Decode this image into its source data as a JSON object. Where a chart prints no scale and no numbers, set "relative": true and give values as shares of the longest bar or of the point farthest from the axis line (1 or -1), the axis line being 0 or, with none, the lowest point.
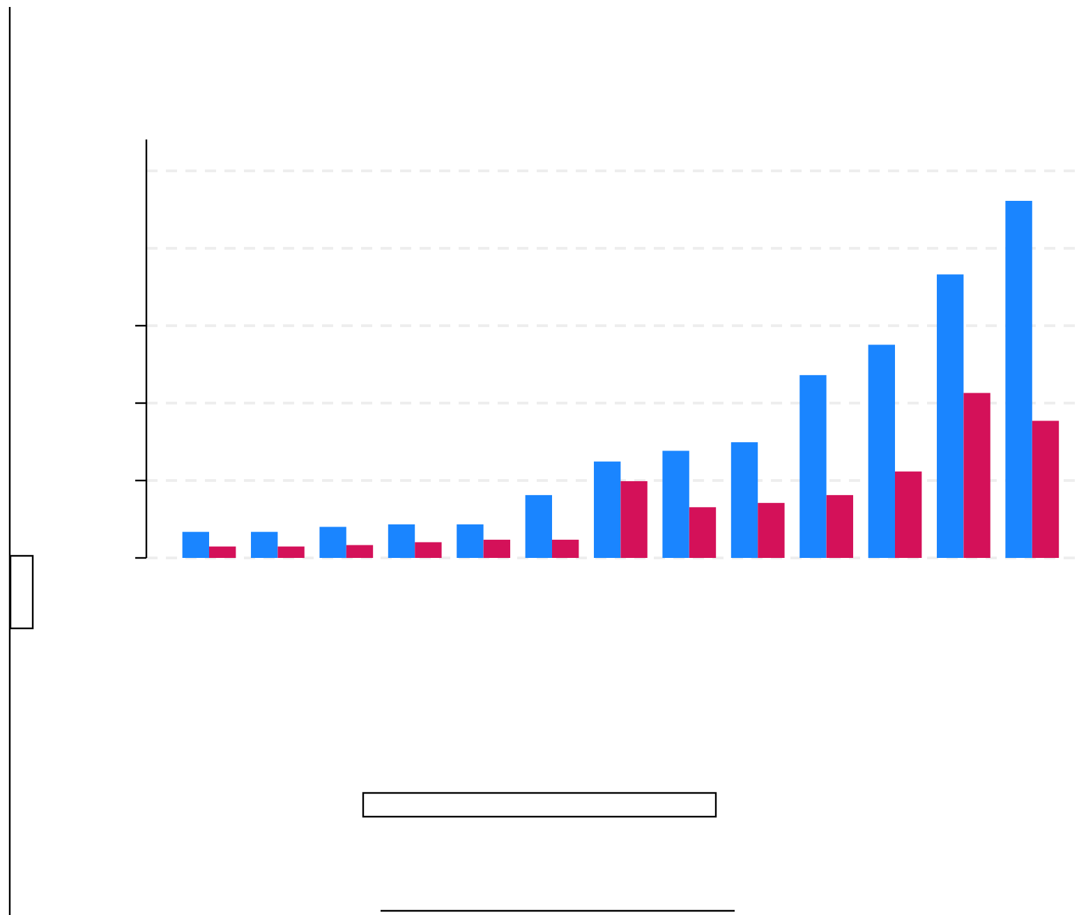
{
  "chart_data": {
    "type": "bar",
    "relative": true,
    "grid": "y",
    "categories": [
      null,
      null,
      null,
      null,
      null,
      null,
      null,
      null,
      null,
      null,
      null,
      null,
      null
    ],
    "series": [
      {
        "color": "#1a85ff",
        "values": [
          0.073,
          0.073,
          0.087,
          0.094,
          0.094,
          0.176,
          0.27,
          0.3,
          0.324,
          0.512,
          0.597,
          0.794,
          1
        ]
      },
      {
        "color": "#d41159",
        "values": [
          0.032,
          0.032,
          0.036,
          0.044,
          0.051,
          0.051,
          0.215,
          0.142,
          0.154,
          0.176,
          0.242,
          0.462,
          0.384
        ]
      }
    ]
  }
}
